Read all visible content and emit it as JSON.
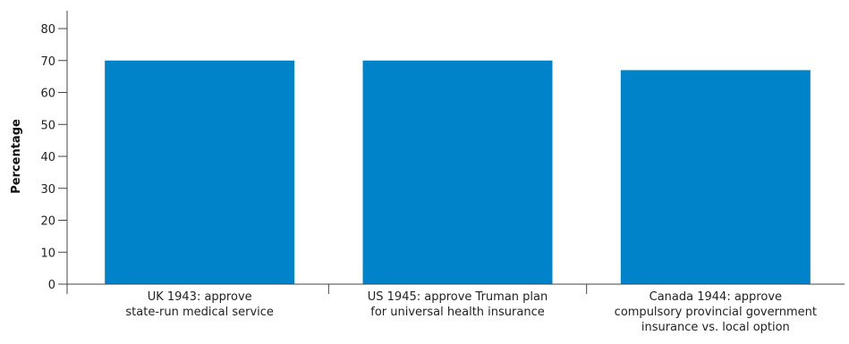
{
  "chart_data": {
    "type": "bar",
    "title": "",
    "xlabel": "",
    "ylabel": "Percentage",
    "ylim": [
      0,
      80
    ],
    "yticks": [
      0,
      10,
      20,
      30,
      40,
      50,
      60,
      70,
      80
    ],
    "grid": false,
    "legend": "none",
    "bar_color": "#0083C8",
    "categories": [
      [
        "UK 1943: approve",
        "state-run medical service"
      ],
      [
        "US 1945: approve Truman plan",
        "for universal health insurance"
      ],
      [
        "Canada 1944: approve",
        "compulsory provincial government",
        "insurance vs. local option"
      ]
    ],
    "values": [
      70,
      70,
      67
    ]
  }
}
